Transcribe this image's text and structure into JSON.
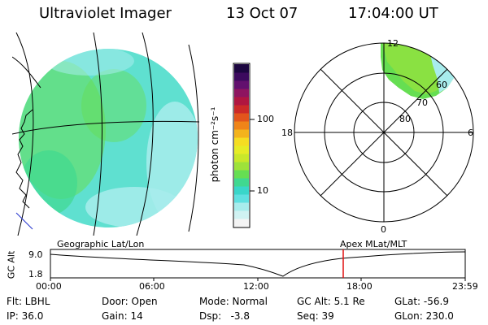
{
  "header": {
    "instrument": "Ultraviolet Imager",
    "date": "13 Oct 07",
    "time": "17:04:00 UT"
  },
  "colorbar": {
    "label": "photon cm⁻²s⁻¹",
    "ticks": [
      "100",
      "10"
    ],
    "colors": [
      "#f4f4f4",
      "#d0f2f2",
      "#a8ecec",
      "#5fe0e0",
      "#39d6c9",
      "#40d890",
      "#66de52",
      "#9ee23a",
      "#c9e82a",
      "#e6ec26",
      "#f5dd22",
      "#f3b31c",
      "#ef8418",
      "#e2551c",
      "#cc2a28",
      "#b01640",
      "#8e1560",
      "#62106e",
      "#3c0a5e",
      "#1c0640"
    ]
  },
  "polar_plot": {
    "mlt_labels": [
      "12",
      "18",
      "6",
      "0"
    ],
    "lat_labels": [
      "60",
      "70",
      "80"
    ]
  },
  "timeline": {
    "y_axis_label": "GC Alt",
    "y_ticks": [
      "9.0",
      "1.8"
    ],
    "left_title": "Geographic Lat/Lon",
    "right_title": "Apex MLat/MLT",
    "x_ticks": [
      "00:00",
      "06:00",
      "12:00",
      "18:00",
      "23:59"
    ]
  },
  "status": {
    "filter": "Flt: LBHL",
    "door": "Door: Open",
    "mode": "Mode: Normal",
    "gc_alt": "GC Alt: 5.1 Re",
    "glat": "GLat: -56.9",
    "ip": "IP: 36.0",
    "gain": "Gain: 14",
    "dsp": "Dsp:   -3.8",
    "seq": "Seq: 39",
    "glon": "GLon: 230.0"
  }
}
